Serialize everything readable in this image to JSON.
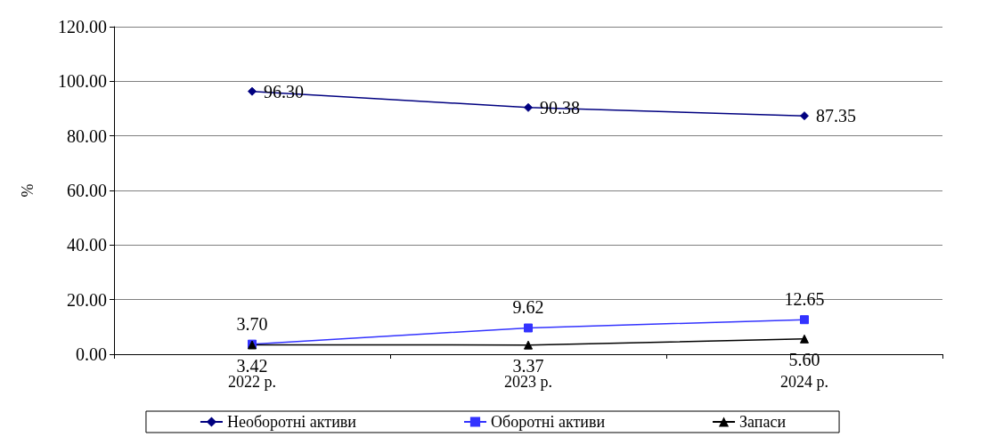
{
  "chart_data": {
    "type": "line",
    "ylabel": "%",
    "categories": [
      "2022 р.",
      "2023 р.",
      "2024 р."
    ],
    "series": [
      {
        "name": "Необоротні активи",
        "color": "#000080",
        "marker": "diamond",
        "values": [
          96.3,
          90.38,
          87.35
        ],
        "value_labels": [
          "96.30",
          "90.38",
          "87.35"
        ]
      },
      {
        "name": "Оборотні активи",
        "color": "#3333ff",
        "marker": "square",
        "values": [
          3.7,
          9.62,
          12.65
        ],
        "value_labels": [
          "3.70",
          "9.62",
          "12.65"
        ]
      },
      {
        "name": "Запаси",
        "color": "#000000",
        "marker": "triangle",
        "values": [
          3.42,
          3.37,
          5.6
        ],
        "value_labels": [
          "3.42",
          "3.37",
          "5.60"
        ]
      }
    ],
    "ylim": [
      0,
      120
    ],
    "yticks": [
      {
        "value": 0,
        "label": "0.00"
      },
      {
        "value": 20,
        "label": "20.00"
      },
      {
        "value": 40,
        "label": "40.00"
      },
      {
        "value": 60,
        "label": "60.00"
      },
      {
        "value": 80,
        "label": "80.00"
      },
      {
        "value": 100,
        "label": "100.00"
      },
      {
        "value": 120,
        "label": "120.00"
      }
    ],
    "grid": "y",
    "legend": "bottom"
  }
}
